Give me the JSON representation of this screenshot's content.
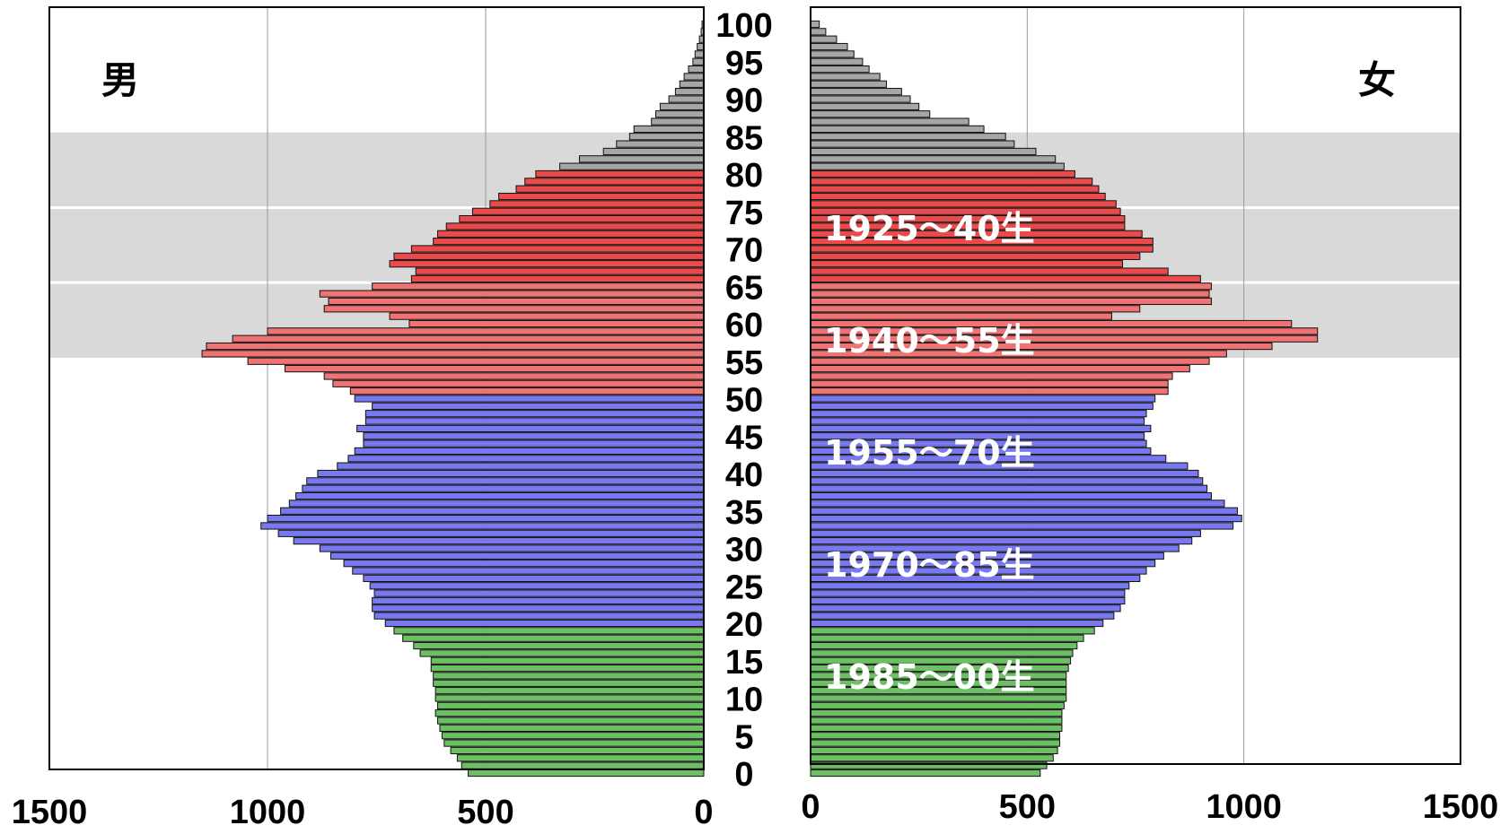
{
  "chart_data": {
    "type": "bar",
    "orientation": "horizontal",
    "layout": "population-pyramid",
    "panels": {
      "male": {
        "label": "男",
        "xlim": [
          0,
          1500
        ],
        "direction": "reversed"
      },
      "female": {
        "label": "女",
        "xlim": [
          0,
          1500
        ],
        "direction": "normal"
      }
    },
    "x_ticks_male": [
      1500,
      1000,
      500,
      0
    ],
    "x_ticks_female": [
      0,
      500,
      1000,
      1500
    ],
    "age_ticks": [
      100,
      95,
      90,
      85,
      80,
      75,
      70,
      65,
      60,
      55,
      50,
      45,
      40,
      35,
      30,
      25,
      20,
      15,
      10,
      5,
      0
    ],
    "grid": "vertical",
    "shaded_age_bands": [
      [
        56,
        75
      ],
      [
        76,
        85
      ]
    ],
    "ages": [
      0,
      1,
      2,
      3,
      4,
      5,
      6,
      7,
      8,
      9,
      10,
      11,
      12,
      13,
      14,
      15,
      16,
      17,
      18,
      19,
      20,
      21,
      22,
      23,
      24,
      25,
      26,
      27,
      28,
      29,
      30,
      31,
      32,
      33,
      34,
      35,
      36,
      37,
      38,
      39,
      40,
      41,
      42,
      43,
      44,
      45,
      46,
      47,
      48,
      49,
      50,
      51,
      52,
      53,
      54,
      55,
      56,
      57,
      58,
      59,
      60,
      61,
      62,
      63,
      64,
      65,
      66,
      67,
      68,
      69,
      70,
      71,
      72,
      73,
      74,
      75,
      76,
      77,
      78,
      79,
      80,
      81,
      82,
      83,
      84,
      85,
      86,
      87,
      88,
      89,
      90,
      91,
      92,
      93,
      94,
      95,
      96,
      97,
      98,
      99,
      100
    ],
    "series": [
      {
        "name": "男",
        "values": [
          540,
          555,
          565,
          580,
          595,
          600,
          605,
          610,
          615,
          610,
          615,
          615,
          620,
          620,
          625,
          625,
          650,
          665,
          690,
          710,
          730,
          755,
          760,
          760,
          755,
          765,
          780,
          805,
          825,
          855,
          880,
          940,
          975,
          1015,
          1000,
          970,
          950,
          935,
          920,
          910,
          885,
          840,
          815,
          800,
          780,
          780,
          795,
          775,
          775,
          760,
          800,
          810,
          850,
          870,
          960,
          1045,
          1150,
          1140,
          1080,
          1000,
          675,
          720,
          870,
          860,
          880,
          760,
          670,
          660,
          720,
          710,
          670,
          620,
          610,
          590,
          560,
          530,
          490,
          470,
          430,
          410,
          385,
          330,
          285,
          230,
          200,
          170,
          160,
          120,
          110,
          100,
          80,
          65,
          55,
          45,
          35,
          25,
          20,
          15,
          10,
          6,
          4
        ],
        "colors": {
          "0-19": "#6fc066",
          "20-50": "#7b7bf2",
          "51-80": "#f07070",
          "81-100": "#a8a8a8"
        }
      },
      {
        "name": "女",
        "values": [
          530,
          545,
          560,
          570,
          575,
          575,
          580,
          580,
          580,
          585,
          590,
          590,
          590,
          590,
          595,
          600,
          605,
          615,
          630,
          655,
          675,
          700,
          715,
          725,
          725,
          735,
          760,
          775,
          795,
          815,
          850,
          880,
          900,
          975,
          995,
          985,
          955,
          925,
          915,
          905,
          895,
          870,
          820,
          785,
          775,
          770,
          785,
          770,
          775,
          790,
          795,
          825,
          825,
          835,
          875,
          920,
          960,
          1065,
          1170,
          1170,
          1110,
          695,
          760,
          925,
          920,
          925,
          900,
          825,
          720,
          760,
          790,
          790,
          765,
          725,
          725,
          715,
          705,
          680,
          665,
          650,
          610,
          585,
          565,
          520,
          470,
          450,
          400,
          365,
          275,
          250,
          230,
          210,
          175,
          160,
          135,
          120,
          100,
          85,
          60,
          35,
          20
        ]
      }
    ],
    "annotations": [
      {
        "text": "1925～40生"
      },
      {
        "text": "1940～55生"
      },
      {
        "text": "1955～70生"
      },
      {
        "text": "1970～85生"
      },
      {
        "text": "1985～00生"
      }
    ]
  }
}
